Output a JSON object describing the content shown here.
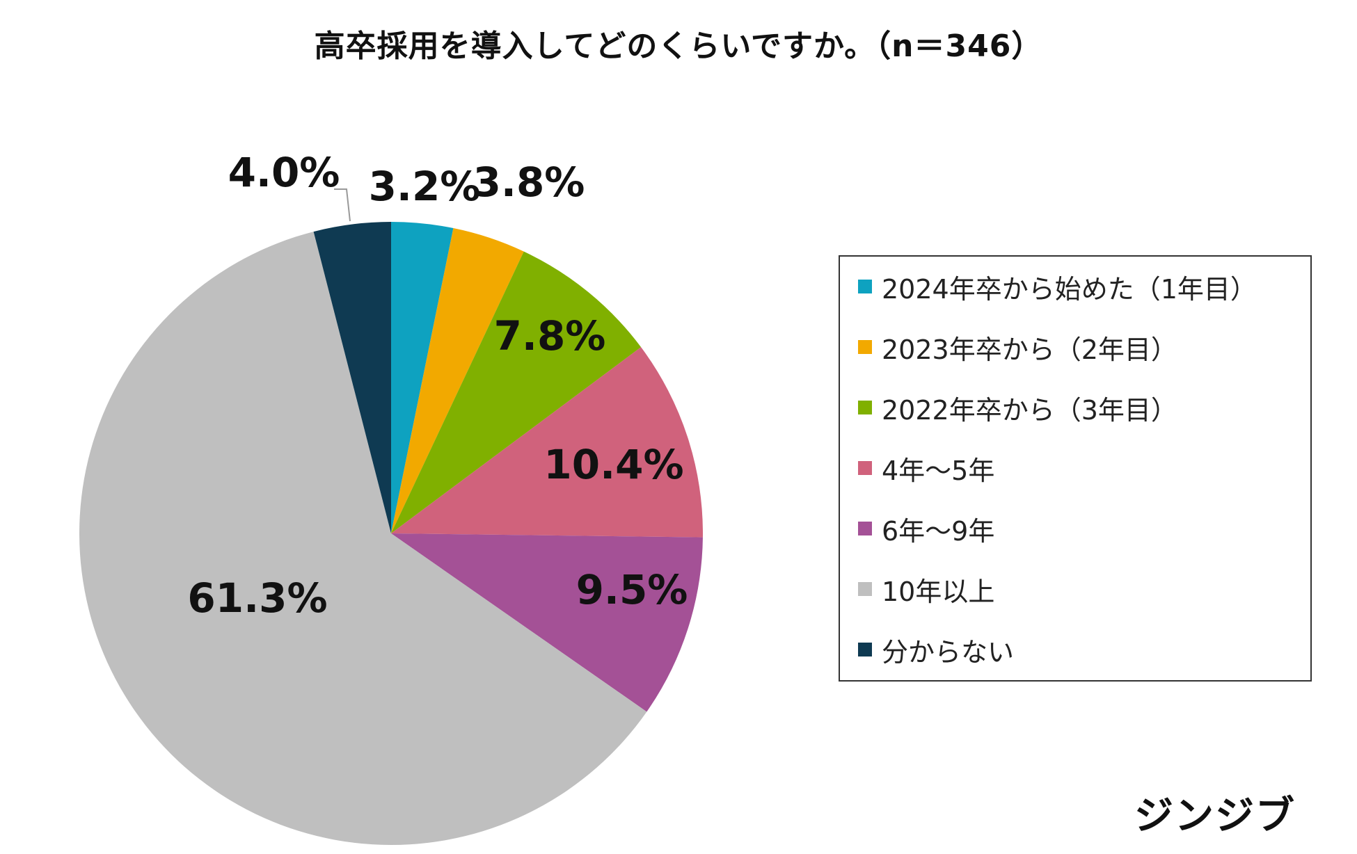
{
  "chart_data": {
    "type": "pie",
    "title": "高卒採用を導入してどのくらいですか。（n＝346）",
    "n": 346,
    "categories": [
      "2024年卒から始めた（1年目）",
      "2023年卒から（2年目）",
      "2022年卒から（3年目）",
      "4年～5年",
      "6年～9年",
      "10年以上",
      "分からない"
    ],
    "values": [
      3.2,
      3.8,
      7.8,
      10.4,
      9.5,
      61.3,
      4.0
    ],
    "labels": [
      "3.2%",
      "3.8%",
      "7.8%",
      "10.4%",
      "9.5%",
      "61.3%",
      "4.0%"
    ],
    "colors": [
      "#0ea2c0",
      "#f2a900",
      "#80b000",
      "#d0627c",
      "#a45196",
      "#bfbfbf",
      "#0f3a52"
    ],
    "start": "12 o'clock",
    "direction": "clockwise",
    "legend_position": "right"
  },
  "brand": "ジンジブ"
}
